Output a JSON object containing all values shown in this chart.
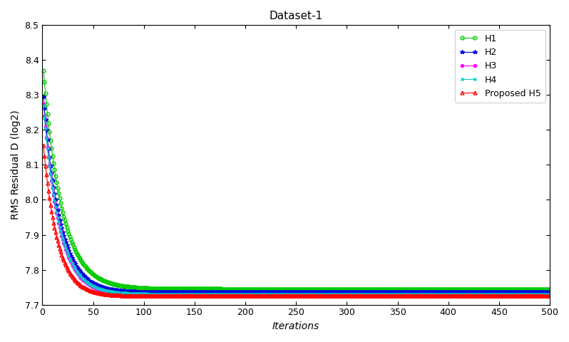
{
  "title": "Dataset-1",
  "xlabel": "Iterations",
  "ylabel": "RMS Residual D (log2)",
  "xlim": [
    0,
    500
  ],
  "ylim": [
    7.7,
    8.5
  ],
  "xticks": [
    0,
    50,
    100,
    150,
    200,
    250,
    300,
    350,
    400,
    450,
    500
  ],
  "yticks": [
    7.7,
    7.8,
    7.9,
    8.0,
    8.1,
    8.2,
    8.3,
    8.4,
    8.5
  ],
  "n_iterations": 500,
  "series": [
    {
      "label": "H1",
      "color": "#00cc00",
      "marker": "o",
      "marker_size": 3.5,
      "start": 8.37,
      "end": 7.745,
      "decay": 0.55,
      "marker_every": 1,
      "open_marker": true
    },
    {
      "label": "H2",
      "color": "#0000dd",
      "marker": "*",
      "marker_size": 4,
      "start": 8.295,
      "end": 7.735,
      "decay": 0.62,
      "marker_every": 1,
      "open_marker": false
    },
    {
      "label": "H3",
      "color": "#ff00ff",
      "marker": "o",
      "marker_size": 3,
      "start": 8.275,
      "end": 7.728,
      "decay": 0.65,
      "marker_every": 1,
      "open_marker": false
    },
    {
      "label": "H4",
      "color": "#00cccc",
      "marker": "x",
      "marker_size": 3.5,
      "start": 8.27,
      "end": 7.73,
      "decay": 0.64,
      "marker_every": 1,
      "open_marker": false
    },
    {
      "label": "Proposed H5",
      "color": "#ff0000",
      "marker": "^",
      "marker_size": 3.5,
      "start": 8.155,
      "end": 7.725,
      "decay": 0.72,
      "marker_every": 1,
      "open_marker": true
    }
  ],
  "legend_loc": "upper right",
  "background_color": "#ffffff",
  "title_fontsize": 11,
  "label_fontsize": 10,
  "tick_fontsize": 9
}
